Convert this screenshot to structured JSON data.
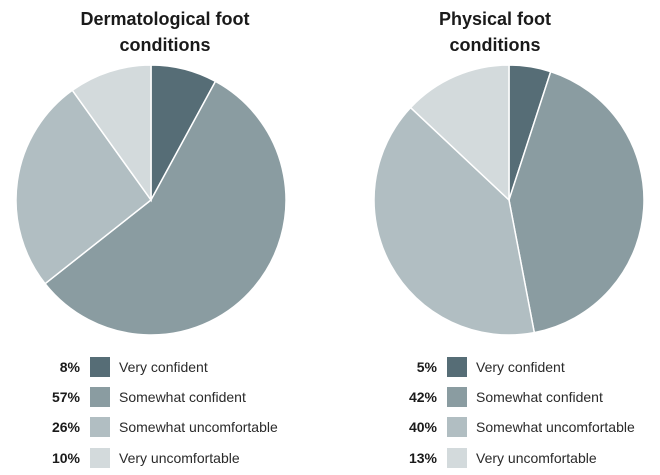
{
  "chart_data": [
    {
      "type": "pie",
      "title_lines": [
        "Dermatological foot",
        "conditions"
      ],
      "categories": [
        "Very confident",
        "Somewhat confident",
        "Somewhat uncomfortable",
        "Very uncomfortable"
      ],
      "values": [
        8,
        57,
        26,
        10
      ],
      "value_labels": [
        "8%",
        "57%",
        "26%",
        "10%"
      ],
      "colors": [
        "#566d76",
        "#8a9ca1",
        "#b1bec2",
        "#d3dadc"
      ],
      "legend_position": "bottom"
    },
    {
      "type": "pie",
      "title_lines": [
        "Physical foot",
        "conditions"
      ],
      "categories": [
        "Very confident",
        "Somewhat confident",
        "Somewhat uncomfortable",
        "Very uncomfortable"
      ],
      "values": [
        5,
        42,
        40,
        13
      ],
      "value_labels": [
        "5%",
        "42%",
        "40%",
        "13%"
      ],
      "colors": [
        "#566d76",
        "#8a9ca1",
        "#b1bec2",
        "#d3dadc"
      ],
      "legend_position": "bottom"
    }
  ]
}
